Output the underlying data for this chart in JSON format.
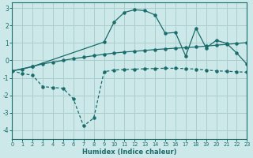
{
  "xlabel": "Humidex (Indice chaleur)",
  "xlim": [
    0,
    23
  ],
  "ylim": [
    -4.5,
    3.3
  ],
  "yticks": [
    -4,
    -3,
    -2,
    -1,
    0,
    1,
    2,
    3
  ],
  "xticks": [
    0,
    1,
    2,
    3,
    4,
    5,
    6,
    7,
    8,
    9,
    10,
    11,
    12,
    13,
    14,
    15,
    16,
    17,
    18,
    19,
    20,
    21,
    22,
    23
  ],
  "bg_color": "#cce8e8",
  "line_color": "#1a6b6b",
  "grid_color": "#aacfcf",
  "line1_x": [
    0,
    1,
    2,
    3,
    4,
    5,
    6,
    7,
    8,
    9,
    10,
    11,
    12,
    13,
    14,
    15,
    16,
    17,
    18,
    19,
    20,
    21,
    22,
    23
  ],
  "line1_y": [
    -0.6,
    -0.5,
    -0.35,
    -0.2,
    -0.1,
    0.0,
    0.1,
    0.18,
    0.27,
    0.35,
    0.42,
    0.48,
    0.52,
    0.57,
    0.62,
    0.66,
    0.7,
    0.73,
    0.77,
    0.82,
    0.87,
    0.92,
    0.97,
    1.02
  ],
  "line2_x": [
    0,
    1,
    2,
    3,
    4,
    5,
    6,
    7,
    8,
    9,
    10,
    11,
    12,
    13,
    14,
    15,
    16,
    17,
    18,
    19,
    20,
    21,
    22,
    23
  ],
  "line2_y": [
    -0.6,
    -0.75,
    -0.85,
    -1.5,
    -1.55,
    -1.6,
    -2.2,
    -3.75,
    -3.3,
    -0.65,
    -0.55,
    -0.52,
    -0.5,
    -0.48,
    -0.46,
    -0.45,
    -0.45,
    -0.47,
    -0.5,
    -0.55,
    -0.6,
    -0.62,
    -0.65,
    -0.68
  ],
  "line3_x": [
    0,
    2,
    9,
    10,
    11,
    12,
    13,
    14,
    15,
    16,
    17,
    18,
    19,
    20,
    21,
    22,
    23
  ],
  "line3_y": [
    -0.6,
    -0.35,
    1.05,
    2.2,
    2.75,
    2.9,
    2.85,
    2.6,
    1.55,
    1.6,
    0.25,
    1.85,
    0.72,
    1.15,
    0.98,
    0.42,
    -0.22
  ]
}
